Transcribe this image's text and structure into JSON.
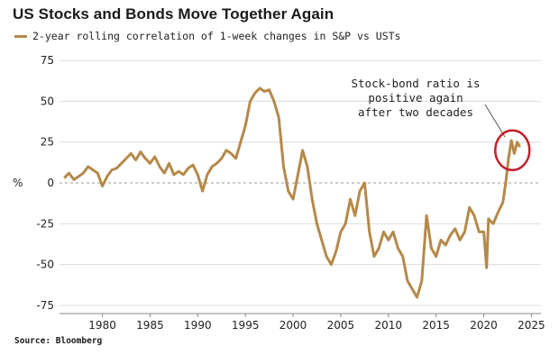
{
  "chart_data": {
    "type": "line",
    "title": "US Stocks and Bonds Move Together Again",
    "legend": "2-year rolling correlation of 1-week changes in S&P vs USTs",
    "source": "Source: Bloomberg",
    "ylabel_symbol": "%",
    "xlim": [
      1975.5,
      2026
    ],
    "ylim": [
      -80,
      80
    ],
    "x_ticks": [
      1980,
      1985,
      1990,
      1995,
      2000,
      2005,
      2010,
      2015,
      2020,
      2025
    ],
    "y_ticks": [
      75,
      50,
      25,
      0,
      -25,
      -50,
      -75
    ],
    "annotation": [
      "Stock-bond ratio is",
      "positive again",
      "after two decades"
    ],
    "series": [
      {
        "name": "2-year rolling correlation of 1-week changes in S&P vs USTs",
        "color": "#b5894a",
        "points": [
          [
            1976,
            3
          ],
          [
            1976.5,
            6
          ],
          [
            1977,
            2
          ],
          [
            1977.5,
            4
          ],
          [
            1978,
            6
          ],
          [
            1978.5,
            10
          ],
          [
            1979,
            8
          ],
          [
            1979.5,
            6
          ],
          [
            1980,
            -2
          ],
          [
            1980.5,
            4
          ],
          [
            1981,
            8
          ],
          [
            1981.5,
            9
          ],
          [
            1982,
            12
          ],
          [
            1982.5,
            15
          ],
          [
            1983,
            18
          ],
          [
            1983.5,
            14
          ],
          [
            1984,
            19
          ],
          [
            1984.5,
            15
          ],
          [
            1985,
            12
          ],
          [
            1985.5,
            16
          ],
          [
            1986,
            10
          ],
          [
            1986.5,
            6
          ],
          [
            1987,
            12
          ],
          [
            1987.5,
            5
          ],
          [
            1988,
            7
          ],
          [
            1988.5,
            5
          ],
          [
            1989,
            9
          ],
          [
            1989.5,
            11
          ],
          [
            1990,
            5
          ],
          [
            1990.5,
            -5
          ],
          [
            1991,
            5
          ],
          [
            1991.5,
            10
          ],
          [
            1992,
            12
          ],
          [
            1992.5,
            15
          ],
          [
            1993,
            20
          ],
          [
            1993.5,
            18
          ],
          [
            1994,
            15
          ],
          [
            1994.5,
            25
          ],
          [
            1995,
            35
          ],
          [
            1995.5,
            50
          ],
          [
            1996,
            55
          ],
          [
            1996.5,
            58
          ],
          [
            1997,
            56
          ],
          [
            1997.5,
            57
          ],
          [
            1998,
            50
          ],
          [
            1998.5,
            40
          ],
          [
            1999,
            10
          ],
          [
            1999.5,
            -5
          ],
          [
            2000,
            -10
          ],
          [
            2000.5,
            5
          ],
          [
            2001,
            20
          ],
          [
            2001.5,
            10
          ],
          [
            2002,
            -10
          ],
          [
            2002.5,
            -25
          ],
          [
            2003,
            -35
          ],
          [
            2003.5,
            -45
          ],
          [
            2004,
            -50
          ],
          [
            2004.5,
            -42
          ],
          [
            2005,
            -30
          ],
          [
            2005.5,
            -25
          ],
          [
            2006,
            -10
          ],
          [
            2006.5,
            -20
          ],
          [
            2007,
            -5
          ],
          [
            2007.5,
            0
          ],
          [
            2008,
            -30
          ],
          [
            2008.5,
            -45
          ],
          [
            2009,
            -40
          ],
          [
            2009.5,
            -30
          ],
          [
            2010,
            -35
          ],
          [
            2010.5,
            -30
          ],
          [
            2011,
            -40
          ],
          [
            2011.5,
            -45
          ],
          [
            2012,
            -60
          ],
          [
            2012.5,
            -65
          ],
          [
            2013,
            -70
          ],
          [
            2013.5,
            -60
          ],
          [
            2014,
            -20
          ],
          [
            2014.5,
            -40
          ],
          [
            2015,
            -45
          ],
          [
            2015.5,
            -35
          ],
          [
            2016,
            -38
          ],
          [
            2016.5,
            -32
          ],
          [
            2017,
            -28
          ],
          [
            2017.5,
            -35
          ],
          [
            2018,
            -30
          ],
          [
            2018.5,
            -15
          ],
          [
            2019,
            -20
          ],
          [
            2019.5,
            -30
          ],
          [
            2020,
            -30
          ],
          [
            2020.3,
            -52
          ],
          [
            2020.5,
            -22
          ],
          [
            2021,
            -25
          ],
          [
            2021.5,
            -18
          ],
          [
            2022,
            -12
          ],
          [
            2022.3,
            0
          ],
          [
            2022.6,
            15
          ],
          [
            2022.9,
            26
          ],
          [
            2023.2,
            18
          ],
          [
            2023.5,
            25
          ],
          [
            2023.8,
            22
          ]
        ]
      }
    ]
  }
}
